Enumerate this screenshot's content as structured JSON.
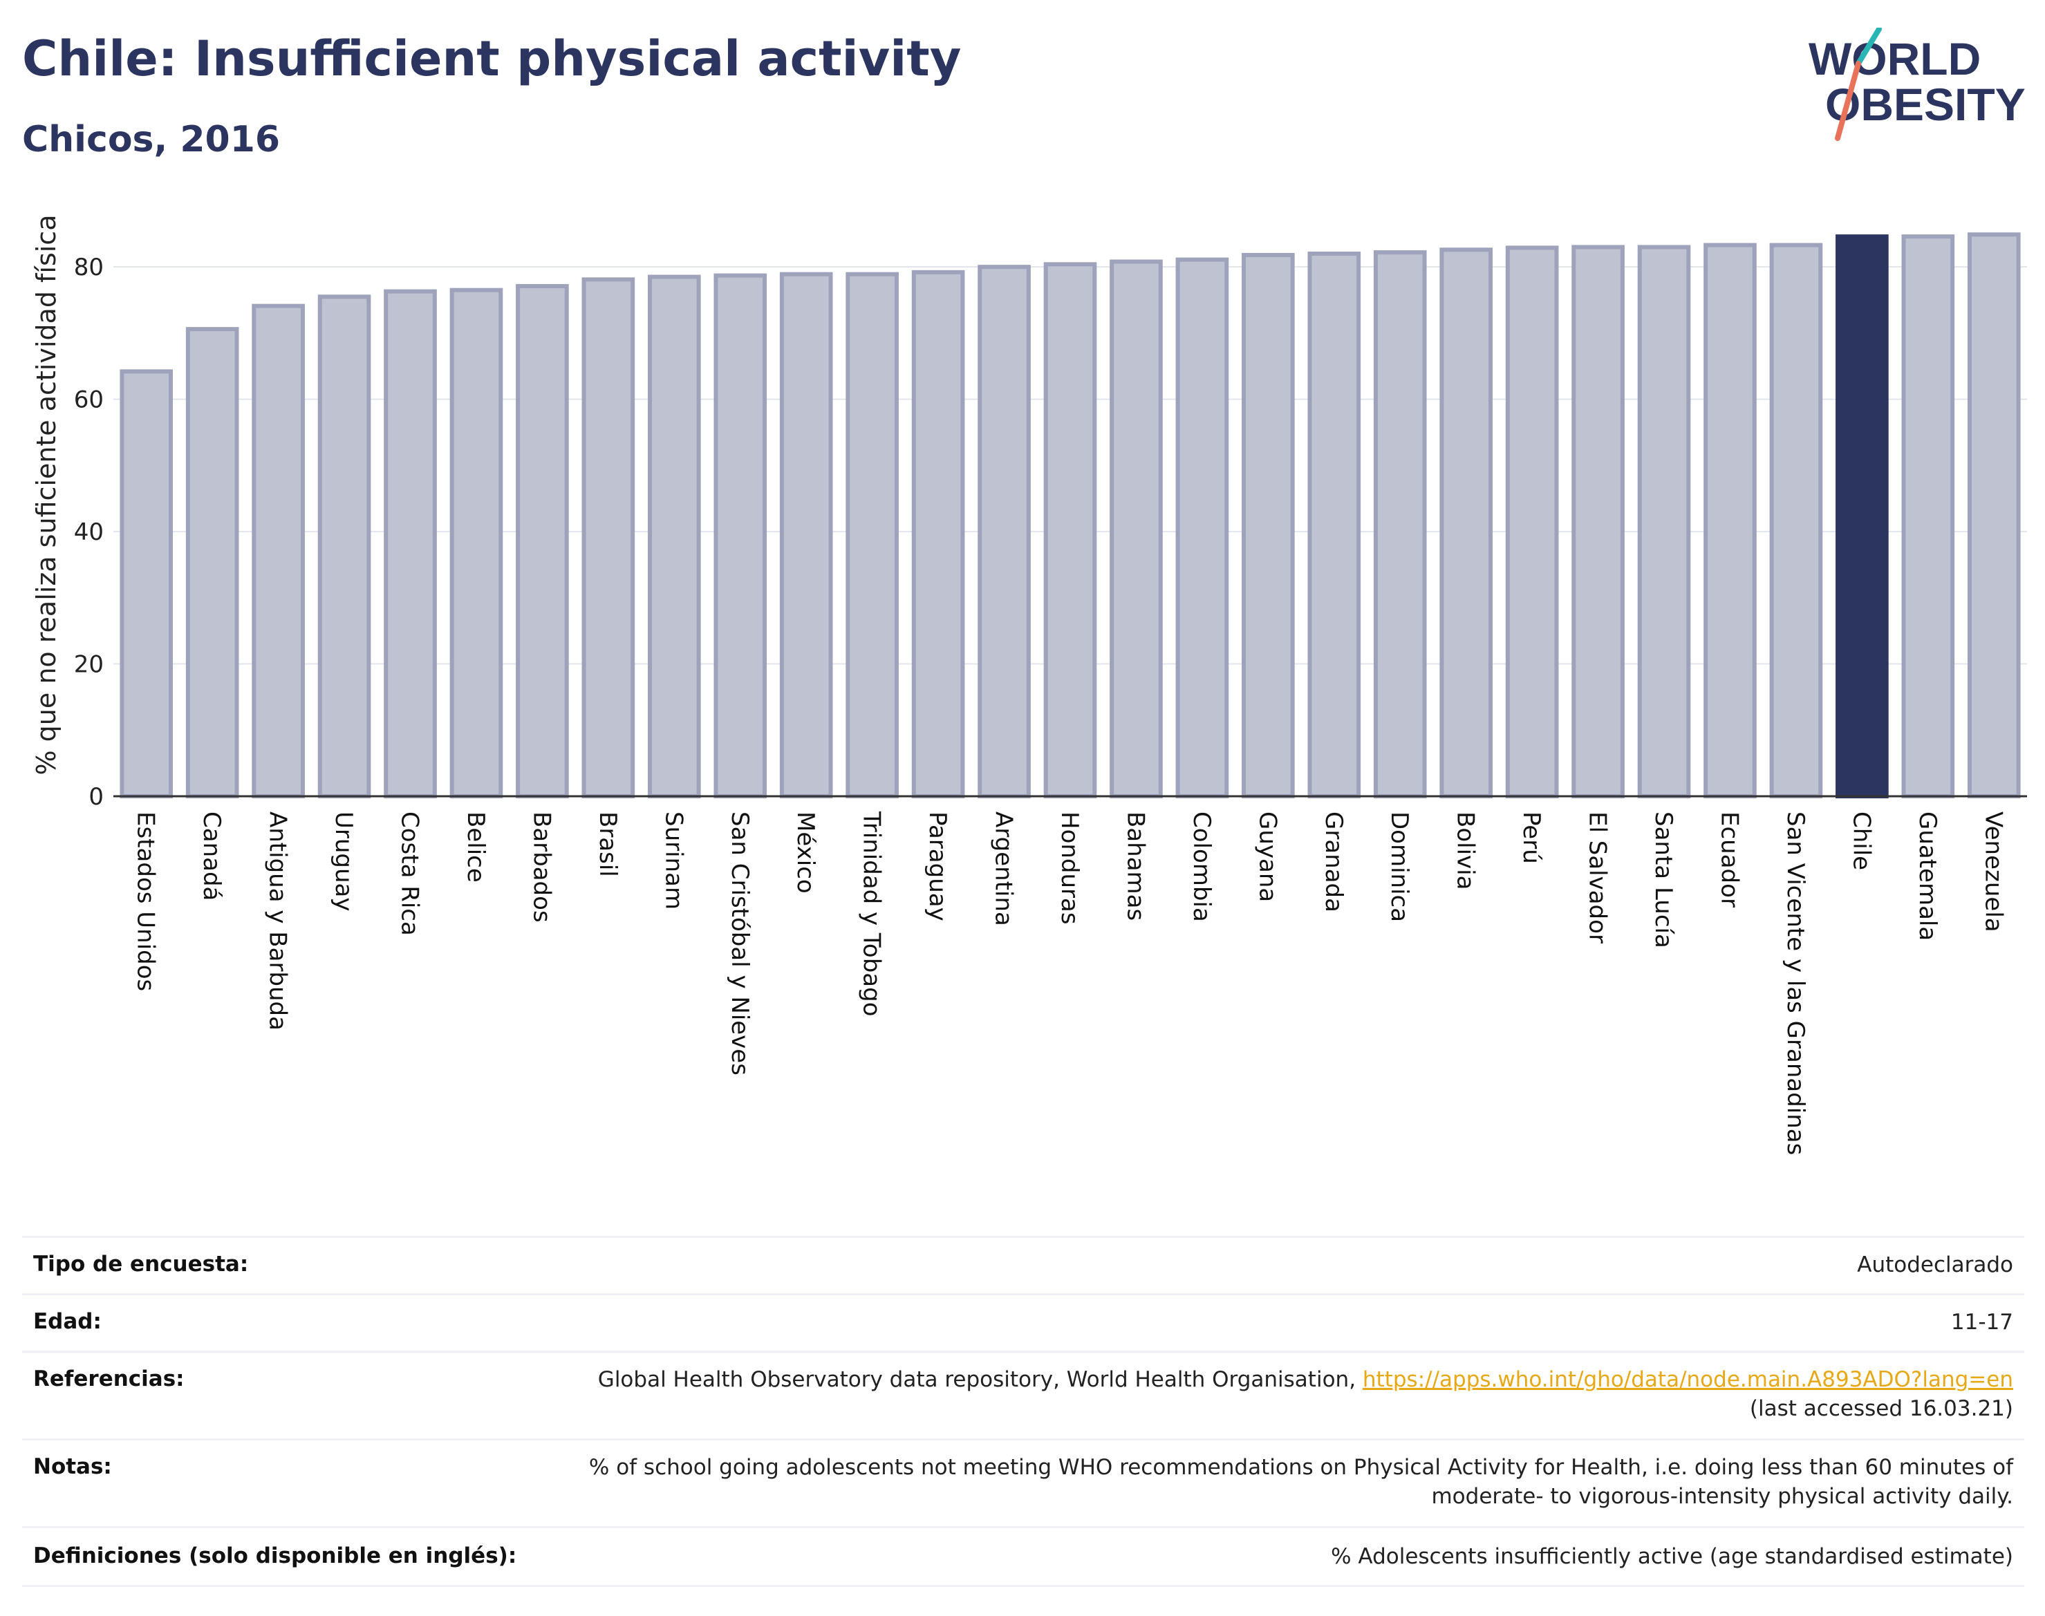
{
  "header": {
    "title": "Chile: Insufficient physical activity",
    "subtitle": "Chicos, 2016"
  },
  "logo": {
    "line1": "WORLD",
    "line2": "OBESITY"
  },
  "colors": {
    "title": "#2b3560",
    "bar": "#bfc2d0",
    "bar_border": "#9ea3bb",
    "highlight": "#2b3560",
    "link": "#e6a817"
  },
  "chart_data": {
    "type": "bar",
    "ylabel": "% que no realiza suficiente actividad física",
    "ylim": [
      0,
      89
    ],
    "yticks": [
      0,
      20,
      40,
      60,
      80
    ],
    "grid": true,
    "highlight": "Chile",
    "categories": [
      "Estados Unidos",
      "Canadá",
      "Antigua y Barbuda",
      "Uruguay",
      "Costa Rica",
      "Belice",
      "Barbados",
      "Brasil",
      "Surinam",
      "San Cristóbal y Nieves",
      "México",
      "Trinidad y Tobago",
      "Paraguay",
      "Argentina",
      "Honduras",
      "Bahamas",
      "Colombia",
      "Guyana",
      "Granada",
      "Dominica",
      "Bolivia",
      "Perú",
      "El Salvador",
      "Santa Lucía",
      "Ecuador",
      "San Vicente y las Granadinas",
      "Chile",
      "Guatemala",
      "Venezuela"
    ],
    "values": [
      64.2,
      70.6,
      74.1,
      75.5,
      76.3,
      76.5,
      77.1,
      78.1,
      78.5,
      78.7,
      78.9,
      78.9,
      79.2,
      80.0,
      80.4,
      80.8,
      81.1,
      81.8,
      82.0,
      82.2,
      82.6,
      82.9,
      83.0,
      83.0,
      83.3,
      83.3,
      84.6,
      84.6,
      84.9
    ]
  },
  "info_table": [
    {
      "label": "Tipo de encuesta:",
      "value": "Autodeclarado"
    },
    {
      "label": "Edad:",
      "value": "11-17"
    },
    {
      "label": "Referencias:",
      "value": "Global Health Observatory data repository, World Health Organisation, ",
      "link": "https://apps.who.int/gho/data/node.main.A893ADO?lang=en",
      "value2": "(last accessed 16.03.21)"
    },
    {
      "label": "Notas:",
      "value": "% of school going adolescents not meeting WHO recommendations on Physical Activity for Health, i.e. doing less than 60 minutes of",
      "value2": "moderate- to vigorous-intensity physical activity daily."
    },
    {
      "label": "Definiciones (solo disponible en inglés):",
      "value": "% Adolescents insufficiently active (age standardised estimate)"
    }
  ]
}
